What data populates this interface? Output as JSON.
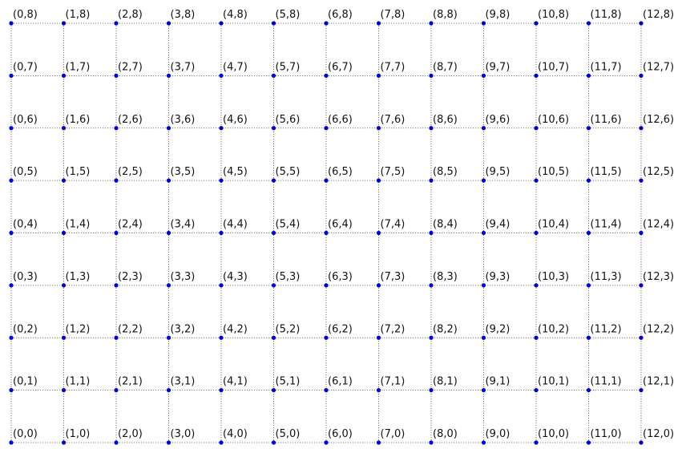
{
  "diagram": {
    "type": "lattice",
    "x_range": [
      0,
      12
    ],
    "y_range": [
      0,
      8
    ],
    "point_color": "#0000dd",
    "grid_line_color": "#555555",
    "grid_line_style": "dotted",
    "label_color": "#111111",
    "label_format": "(x,y)",
    "label_placement": "above-right of point"
  }
}
